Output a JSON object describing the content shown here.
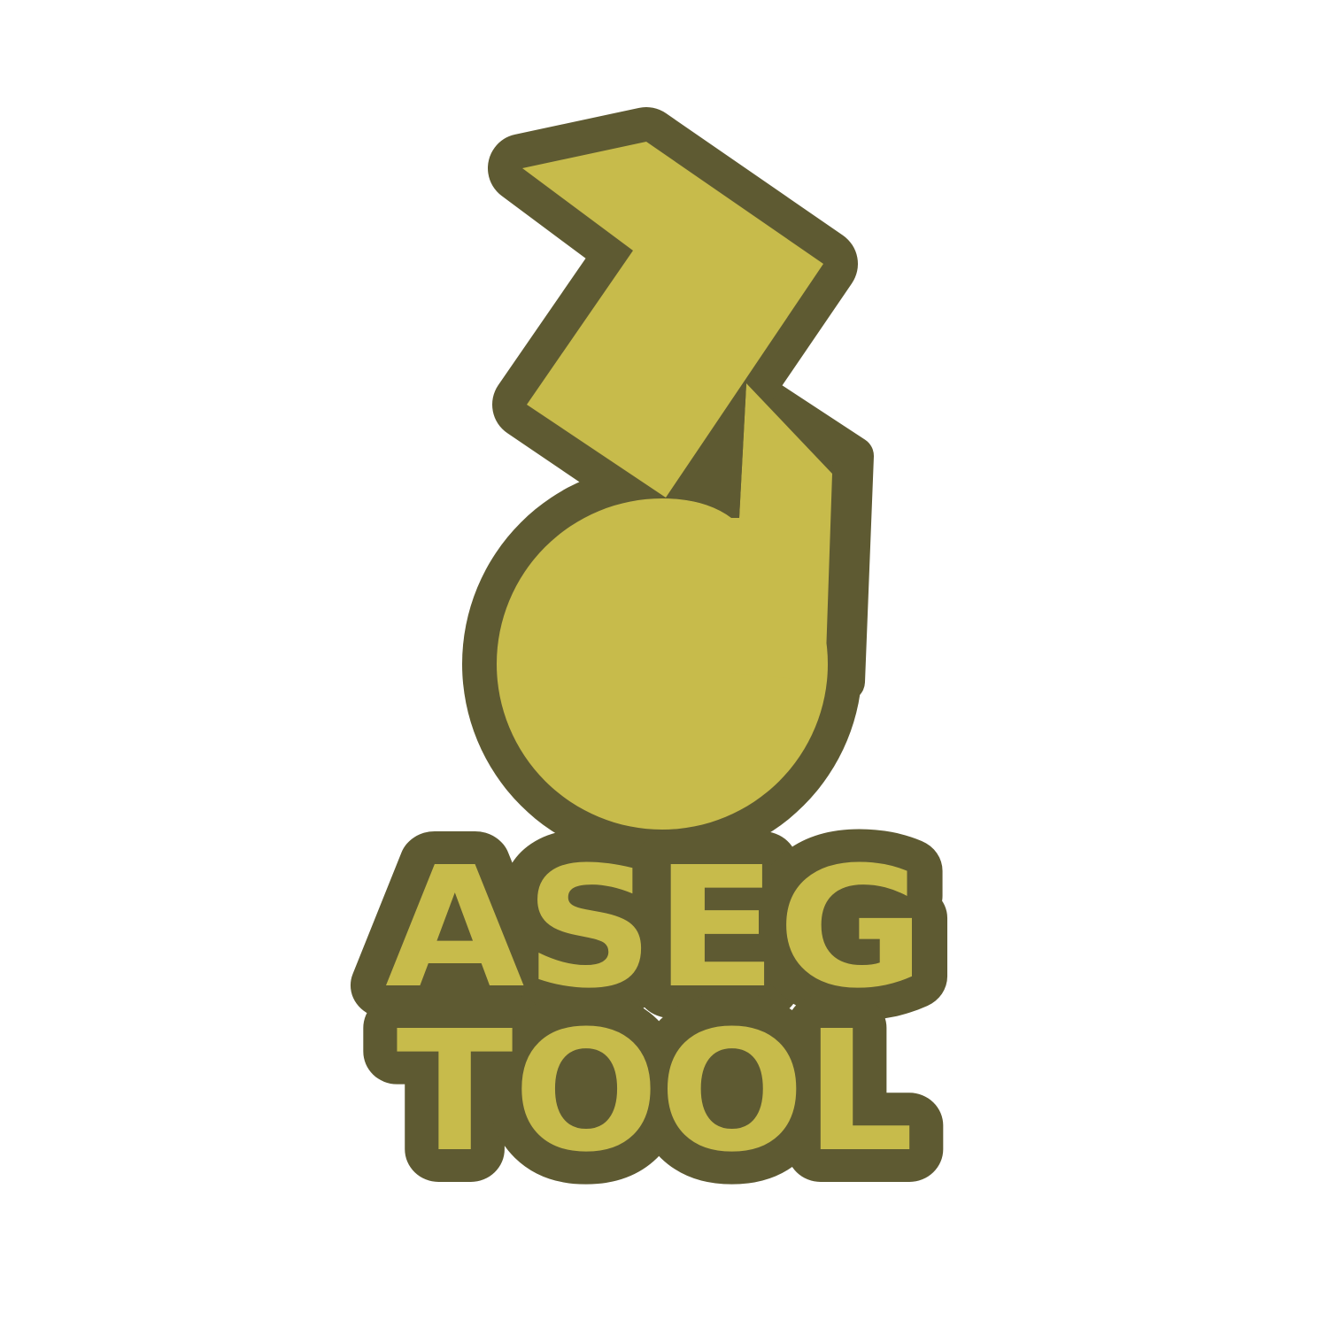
{
  "logo": {
    "line1": "ASEG",
    "line2": "TOOL",
    "fill_color": "#c7bb4b",
    "outline_color": "#5e5a32",
    "background_color": "#ffffff"
  }
}
